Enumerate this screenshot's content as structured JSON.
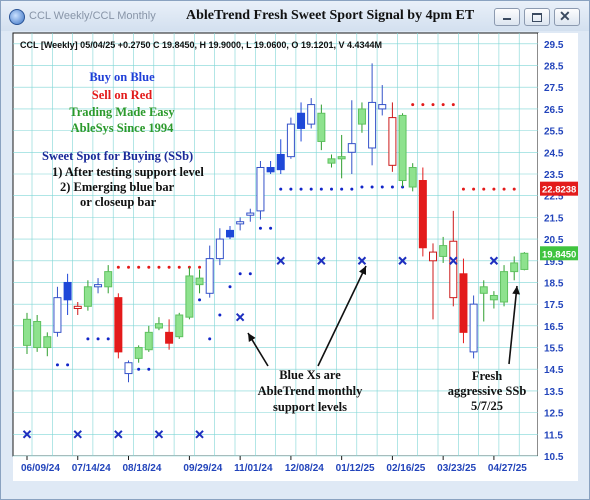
{
  "window": {
    "tab_title": "CCL Weekly/CCL Monthly",
    "title": "AbleTrend Fresh Sweet Sport Signal by 4pm ET"
  },
  "colors": {
    "up_bar": "#8ee28e",
    "down_bar": "#e31b1b",
    "blue_bar": "#1f48d8",
    "hollow_bar": "#3452c9",
    "support_x": "#1d2fbf",
    "blue_dot": "#1226c8",
    "red_dot": "#e31b1b",
    "grid": "#7fd6d6",
    "axis_text": "#2244bb",
    "price_bg": "#e31b1b",
    "current_bg": "#3fc43f"
  },
  "chart_data": {
    "type": "candlestick",
    "header": "CCL [Weekly] 05/04/25 +0.2750 C 19.8450, H 19.9000, L 19.0600, O 19.1201, V 4.4344M",
    "ylim": [
      10.5,
      30.0
    ],
    "y_ticks": [
      10.5,
      11.5,
      12.5,
      13.5,
      14.5,
      15.5,
      16.5,
      17.5,
      18.5,
      19.5,
      20.5,
      21.5,
      22.5,
      23.5,
      24.5,
      25.5,
      26.5,
      27.5,
      28.5,
      29.5
    ],
    "x_ticks": [
      "06/09/24",
      "07/14/24",
      "08/18/24",
      "09/29/24",
      "11/01/24",
      "12/08/24",
      "01/12/25",
      "02/16/25",
      "03/23/25",
      "04/27/25"
    ],
    "grid": true,
    "price_labels": [
      {
        "value": 22.8238,
        "text": "22.8238",
        "kind": "price"
      },
      {
        "value": 19.845,
        "text": "19.8450",
        "kind": "current"
      }
    ],
    "candles": [
      {
        "o": 15.6,
        "h": 17.1,
        "l": 15.2,
        "c": 16.8,
        "color": "up"
      },
      {
        "o": 16.7,
        "h": 17.0,
        "l": 15.3,
        "c": 15.5,
        "color": "up"
      },
      {
        "o": 15.5,
        "h": 16.2,
        "l": 15.1,
        "c": 16.0,
        "color": "up"
      },
      {
        "o": 16.2,
        "h": 18.3,
        "l": 16.0,
        "c": 17.8,
        "color": "hollow"
      },
      {
        "o": 17.7,
        "h": 18.9,
        "l": 17.0,
        "c": 18.5,
        "color": "blue"
      },
      {
        "o": 17.3,
        "h": 17.6,
        "l": 17.0,
        "c": 17.4,
        "color": "none"
      },
      {
        "o": 17.4,
        "h": 18.6,
        "l": 17.2,
        "c": 18.3,
        "color": "up"
      },
      {
        "o": 18.3,
        "h": 18.7,
        "l": 18.0,
        "c": 18.4,
        "color": "hollow"
      },
      {
        "o": 18.3,
        "h": 19.3,
        "l": 18.0,
        "c": 19.0,
        "color": "up"
      },
      {
        "o": 17.8,
        "h": 18.0,
        "l": 15.0,
        "c": 15.3,
        "color": "down"
      },
      {
        "o": 14.3,
        "h": 14.9,
        "l": 13.9,
        "c": 14.8,
        "color": "hollow"
      },
      {
        "o": 15.0,
        "h": 15.6,
        "l": 14.8,
        "c": 15.5,
        "color": "up"
      },
      {
        "o": 15.4,
        "h": 16.5,
        "l": 15.3,
        "c": 16.2,
        "color": "up"
      },
      {
        "o": 16.4,
        "h": 16.9,
        "l": 16.3,
        "c": 16.6,
        "color": "up"
      },
      {
        "o": 16.2,
        "h": 16.8,
        "l": 15.4,
        "c": 15.7,
        "color": "down"
      },
      {
        "o": 16.0,
        "h": 17.1,
        "l": 15.9,
        "c": 17.0,
        "color": "up"
      },
      {
        "o": 16.9,
        "h": 19.2,
        "l": 16.8,
        "c": 18.8,
        "color": "up"
      },
      {
        "o": 18.7,
        "h": 19.1,
        "l": 18.0,
        "c": 18.4,
        "color": "up"
      },
      {
        "o": 18.0,
        "h": 20.2,
        "l": 17.8,
        "c": 19.6,
        "color": "hollow"
      },
      {
        "o": 19.6,
        "h": 21.0,
        "l": 19.3,
        "c": 20.5,
        "color": "hollow"
      },
      {
        "o": 20.6,
        "h": 21.1,
        "l": 20.5,
        "c": 20.9,
        "color": "blue"
      },
      {
        "o": 21.2,
        "h": 21.5,
        "l": 20.9,
        "c": 21.3,
        "color": "hollow"
      },
      {
        "o": 21.6,
        "h": 21.9,
        "l": 21.3,
        "c": 21.7,
        "color": "hollow"
      },
      {
        "o": 21.8,
        "h": 24.1,
        "l": 21.4,
        "c": 23.8,
        "color": "hollow"
      },
      {
        "o": 23.6,
        "h": 24.1,
        "l": 23.5,
        "c": 23.8,
        "color": "blue"
      },
      {
        "o": 23.7,
        "h": 25.1,
        "l": 23.5,
        "c": 24.4,
        "color": "blue"
      },
      {
        "o": 24.3,
        "h": 26.1,
        "l": 24.2,
        "c": 25.8,
        "color": "hollow"
      },
      {
        "o": 26.3,
        "h": 26.8,
        "l": 25.0,
        "c": 25.6,
        "color": "blue"
      },
      {
        "o": 26.7,
        "h": 27.0,
        "l": 25.6,
        "c": 25.8,
        "color": "hollow"
      },
      {
        "o": 26.3,
        "h": 26.7,
        "l": 24.6,
        "c": 25.0,
        "color": "up"
      },
      {
        "o": 24.2,
        "h": 24.4,
        "l": 23.8,
        "c": 24.0,
        "color": "up"
      },
      {
        "o": 24.2,
        "h": 25.3,
        "l": 23.3,
        "c": 24.3,
        "color": "up"
      },
      {
        "o": 24.5,
        "h": 26.9,
        "l": 23.5,
        "c": 24.9,
        "color": "hollow"
      },
      {
        "o": 25.8,
        "h": 26.8,
        "l": 25.4,
        "c": 26.5,
        "color": "up"
      },
      {
        "o": 26.8,
        "h": 28.6,
        "l": 23.9,
        "c": 24.7,
        "color": "hollow"
      },
      {
        "o": 26.5,
        "h": 27.6,
        "l": 26.2,
        "c": 26.7,
        "color": "hollow"
      },
      {
        "o": 26.1,
        "h": 26.8,
        "l": 23.6,
        "c": 23.9,
        "color": "none"
      },
      {
        "o": 26.2,
        "h": 26.3,
        "l": 22.9,
        "c": 23.2,
        "color": "up"
      },
      {
        "o": 23.8,
        "h": 24.0,
        "l": 22.7,
        "c": 22.9,
        "color": "up"
      },
      {
        "o": 23.2,
        "h": 23.8,
        "l": 19.7,
        "c": 20.1,
        "color": "down"
      },
      {
        "o": 19.9,
        "h": 20.3,
        "l": 16.8,
        "c": 19.5,
        "color": "none"
      },
      {
        "o": 19.7,
        "h": 20.6,
        "l": 19.4,
        "c": 20.2,
        "color": "up"
      },
      {
        "o": 20.4,
        "h": 21.8,
        "l": 17.4,
        "c": 17.8,
        "color": "none"
      },
      {
        "o": 18.9,
        "h": 19.6,
        "l": 15.7,
        "c": 16.2,
        "color": "down"
      },
      {
        "o": 17.5,
        "h": 17.9,
        "l": 15.0,
        "c": 15.3,
        "color": "hollow"
      },
      {
        "o": 18.0,
        "h": 18.6,
        "l": 16.7,
        "c": 18.3,
        "color": "up"
      },
      {
        "o": 17.9,
        "h": 18.1,
        "l": 17.3,
        "c": 17.7,
        "color": "up"
      },
      {
        "o": 17.6,
        "h": 19.3,
        "l": 17.4,
        "c": 19.0,
        "color": "up"
      },
      {
        "o": 19.0,
        "h": 19.7,
        "l": 18.6,
        "c": 19.4,
        "color": "up"
      },
      {
        "o": 19.1,
        "h": 19.9,
        "l": 19.06,
        "c": 19.845,
        "color": "up"
      }
    ],
    "support_x": [
      {
        "i": 0,
        "y": 11.5
      },
      {
        "i": 5,
        "y": 11.5
      },
      {
        "i": 9,
        "y": 11.5
      },
      {
        "i": 13,
        "y": 11.5
      },
      {
        "i": 17,
        "y": 11.5
      },
      {
        "i": 21,
        "y": 16.9
      },
      {
        "i": 25,
        "y": 19.5
      },
      {
        "i": 29,
        "y": 19.5
      },
      {
        "i": 33,
        "y": 19.5
      },
      {
        "i": 37,
        "y": 19.5
      },
      {
        "i": 42,
        "y": 19.5
      },
      {
        "i": 46,
        "y": 19.5
      }
    ],
    "blue_dots": [
      {
        "i": 3,
        "y": 14.7
      },
      {
        "i": 4,
        "y": 14.7
      },
      {
        "i": 6,
        "y": 15.9
      },
      {
        "i": 7,
        "y": 15.9
      },
      {
        "i": 8,
        "y": 15.9
      },
      {
        "i": 11,
        "y": 14.5
      },
      {
        "i": 12,
        "y": 14.5
      },
      {
        "i": 16,
        "y": 17.7
      },
      {
        "i": 17,
        "y": 17.7
      },
      {
        "i": 18,
        "y": 15.9
      },
      {
        "i": 19,
        "y": 17.0
      },
      {
        "i": 20,
        "y": 18.3
      },
      {
        "i": 21,
        "y": 18.9
      },
      {
        "i": 22,
        "y": 18.9
      },
      {
        "i": 23,
        "y": 21.0
      },
      {
        "i": 24,
        "y": 21.0
      },
      {
        "i": 25,
        "y": 22.8
      },
      {
        "i": 26,
        "y": 22.8
      },
      {
        "i": 27,
        "y": 22.8
      },
      {
        "i": 28,
        "y": 22.8
      },
      {
        "i": 29,
        "y": 22.8
      },
      {
        "i": 30,
        "y": 22.8
      },
      {
        "i": 31,
        "y": 22.8
      },
      {
        "i": 32,
        "y": 22.8
      },
      {
        "i": 33,
        "y": 22.9
      },
      {
        "i": 34,
        "y": 22.9
      },
      {
        "i": 35,
        "y": 22.9
      },
      {
        "i": 36,
        "y": 22.9
      },
      {
        "i": 37,
        "y": 22.9
      }
    ],
    "red_dots": [
      {
        "i": 9,
        "y": 19.2
      },
      {
        "i": 10,
        "y": 19.2
      },
      {
        "i": 11,
        "y": 19.2
      },
      {
        "i": 12,
        "y": 19.2
      },
      {
        "i": 13,
        "y": 19.2
      },
      {
        "i": 14,
        "y": 19.2
      },
      {
        "i": 15,
        "y": 19.2
      },
      {
        "i": 16,
        "y": 19.2
      },
      {
        "i": 17,
        "y": 19.2
      },
      {
        "i": 38,
        "y": 26.7
      },
      {
        "i": 39,
        "y": 26.7
      },
      {
        "i": 40,
        "y": 26.7
      },
      {
        "i": 41,
        "y": 26.7
      },
      {
        "i": 42,
        "y": 26.7
      },
      {
        "i": 43,
        "y": 22.8
      },
      {
        "i": 44,
        "y": 22.8
      },
      {
        "i": 45,
        "y": 22.8
      },
      {
        "i": 46,
        "y": 22.8
      },
      {
        "i": 47,
        "y": 22.8
      },
      {
        "i": 48,
        "y": 22.8
      }
    ],
    "legend_lines": [
      {
        "text": "Buy on Blue",
        "color": "#1f3fd8"
      },
      {
        "text": "Sell on Red",
        "color": "#e31b1b"
      },
      {
        "text": "Trading Made Easy",
        "color": "#2c9a2c"
      },
      {
        "text": "AbleSys Since 1994",
        "color": "#2c9a2c"
      }
    ],
    "sweet_spot": {
      "title": "Sweet Spot for Buying (SSb)",
      "line1": "1) After testing support level",
      "line2": "2) Emerging blue bar",
      "line3": "or closeup bar"
    },
    "annotations": [
      {
        "lines": [
          "Blue Xs are",
          "AbleTrend monthly",
          "support levels"
        ]
      },
      {
        "lines": [
          "Fresh",
          "aggressive SSb",
          "5/7/25"
        ]
      }
    ]
  }
}
